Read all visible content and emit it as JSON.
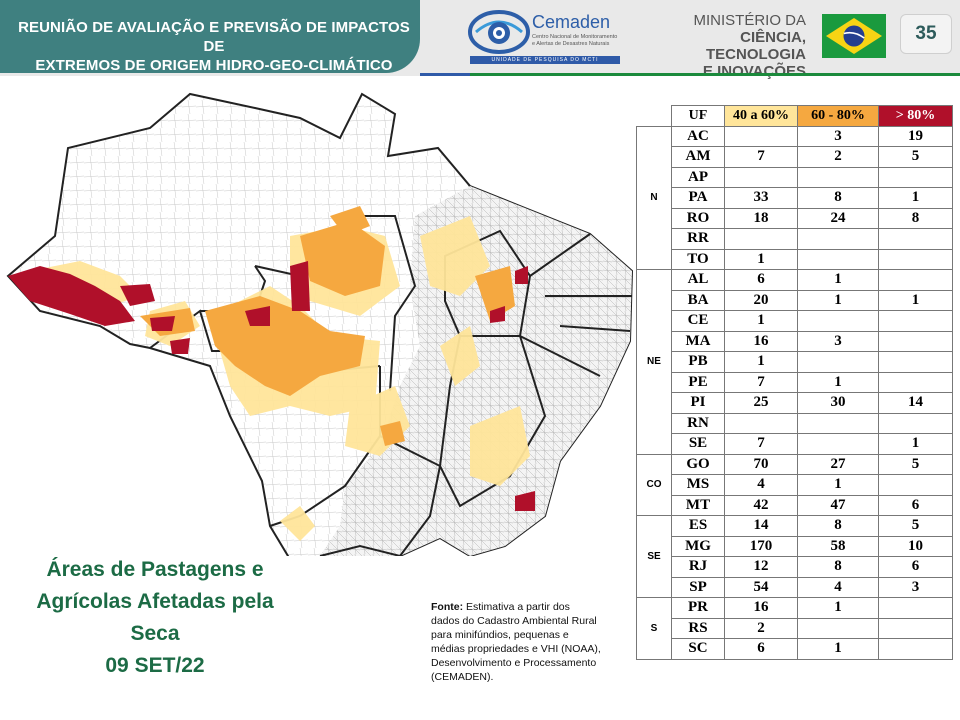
{
  "header": {
    "title_line1": "REUNIÃO DE AVALIAÇÃO E PREVISÃO DE IMPACTOS DE",
    "title_line2": "EXTREMOS DE ORIGEM HIDRO-GEO-CLIMÁTICO",
    "cemaden_name": "Cemaden",
    "cemaden_sub": "Centro Nacional de Monitoramento e Alertas de Desastres Naturais",
    "cemaden_strip": "UNIDADE DE PESQUISA DO MCTI",
    "ministry_line1": "MINISTÉRIO DA",
    "ministry_line2": "CIÊNCIA, TECNOLOGIA",
    "ministry_line3": "E INOVAÇÕES",
    "page_number": "35"
  },
  "caption": {
    "line1": "Áreas de Pastagens e",
    "line2": "Agrícolas Afetadas pela",
    "line3": "Seca",
    "line4": "09 SET/22"
  },
  "source": {
    "label": "Fonte:",
    "text": "Estimativa a partir dos dados do Cadastro Ambiental Rural para minifúndios, pequenas e médias propriedades e VHI (NOAA), Desenvolvimento e Processamento (CEMADEN)."
  },
  "colors": {
    "band_40_60": "#ffe59a",
    "band_60_80": "#f5a840",
    "band_80_plus": "#b0102a",
    "header_teal": "#3f8080",
    "caption_green": "#1c6b45"
  },
  "table": {
    "headers": [
      "UF",
      "40 a 60%",
      "60 - 80%",
      "> 80%"
    ],
    "regions": [
      {
        "name": "N",
        "rows": [
          {
            "uf": "AC",
            "c40": "",
            "c60": "3",
            "c80": "19"
          },
          {
            "uf": "AM",
            "c40": "7",
            "c60": "2",
            "c80": "5"
          },
          {
            "uf": "AP",
            "c40": "",
            "c60": "",
            "c80": ""
          },
          {
            "uf": "PA",
            "c40": "33",
            "c60": "8",
            "c80": "1"
          },
          {
            "uf": "RO",
            "c40": "18",
            "c60": "24",
            "c80": "8"
          },
          {
            "uf": "RR",
            "c40": "",
            "c60": "",
            "c80": ""
          },
          {
            "uf": "TO",
            "c40": "1",
            "c60": "",
            "c80": ""
          }
        ]
      },
      {
        "name": "NE",
        "rows": [
          {
            "uf": "AL",
            "c40": "6",
            "c60": "1",
            "c80": ""
          },
          {
            "uf": "BA",
            "c40": "20",
            "c60": "1",
            "c80": "1"
          },
          {
            "uf": "CE",
            "c40": "1",
            "c60": "",
            "c80": ""
          },
          {
            "uf": "MA",
            "c40": "16",
            "c60": "3",
            "c80": ""
          },
          {
            "uf": "PB",
            "c40": "1",
            "c60": "",
            "c80": ""
          },
          {
            "uf": "PE",
            "c40": "7",
            "c60": "1",
            "c80": ""
          },
          {
            "uf": "PI",
            "c40": "25",
            "c60": "30",
            "c80": "14"
          },
          {
            "uf": "RN",
            "c40": "",
            "c60": "",
            "c80": ""
          },
          {
            "uf": "SE",
            "c40": "7",
            "c60": "",
            "c80": "1"
          }
        ]
      },
      {
        "name": "CO",
        "rows": [
          {
            "uf": "GO",
            "c40": "70",
            "c60": "27",
            "c80": "5"
          },
          {
            "uf": "MS",
            "c40": "4",
            "c60": "1",
            "c80": ""
          },
          {
            "uf": "MT",
            "c40": "42",
            "c60": "47",
            "c80": "6"
          }
        ]
      },
      {
        "name": "SE",
        "rows": [
          {
            "uf": "ES",
            "c40": "14",
            "c60": "8",
            "c80": "5"
          },
          {
            "uf": "MG",
            "c40": "170",
            "c60": "58",
            "c80": "10"
          },
          {
            "uf": "RJ",
            "c40": "12",
            "c60": "8",
            "c80": "6"
          },
          {
            "uf": "SP",
            "c40": "54",
            "c60": "4",
            "c80": "3"
          }
        ]
      },
      {
        "name": "S",
        "rows": [
          {
            "uf": "PR",
            "c40": "16",
            "c60": "1",
            "c80": ""
          },
          {
            "uf": "RS",
            "c40": "2",
            "c60": "",
            "c80": ""
          },
          {
            "uf": "SC",
            "c40": "6",
            "c60": "1",
            "c80": ""
          }
        ]
      }
    ]
  }
}
